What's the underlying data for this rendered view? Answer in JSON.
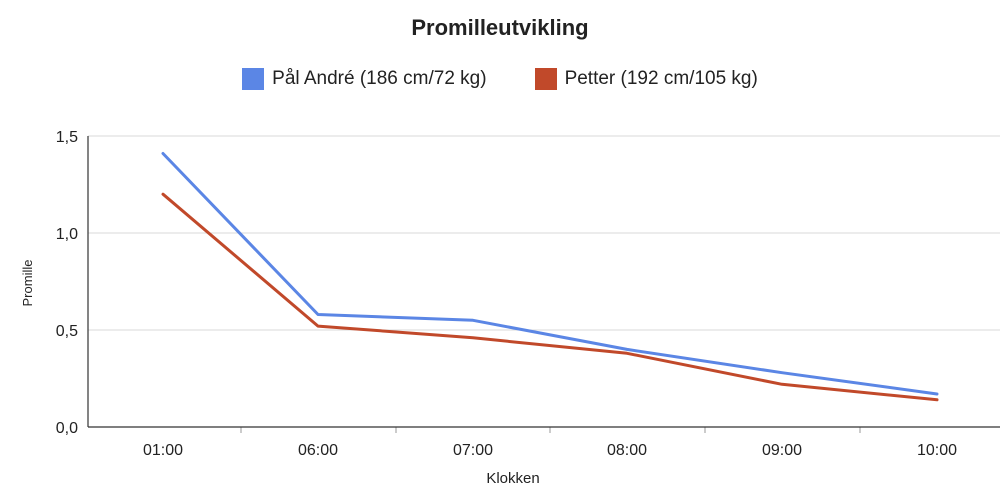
{
  "chart_data": {
    "type": "line",
    "title": "Promilleutvikling",
    "xlabel": "Klokken",
    "ylabel": "Promille",
    "categories": [
      "01:00",
      "06:00",
      "07:00",
      "08:00",
      "09:00",
      "10:00"
    ],
    "yticks": [
      "0,0",
      "0,5",
      "1,0",
      "1,5"
    ],
    "ylim": [
      0,
      1.5
    ],
    "grid": true,
    "legend_position": "top",
    "series": [
      {
        "name": "Pål André (186 cm/72 kg)",
        "color": "#5B86E5",
        "values": [
          1.41,
          0.58,
          0.55,
          0.4,
          0.28,
          0.17
        ]
      },
      {
        "name": "Petter (192 cm/105 kg)",
        "color": "#C1492A",
        "values": [
          1.2,
          0.52,
          0.46,
          0.38,
          0.22,
          0.14
        ]
      }
    ]
  }
}
